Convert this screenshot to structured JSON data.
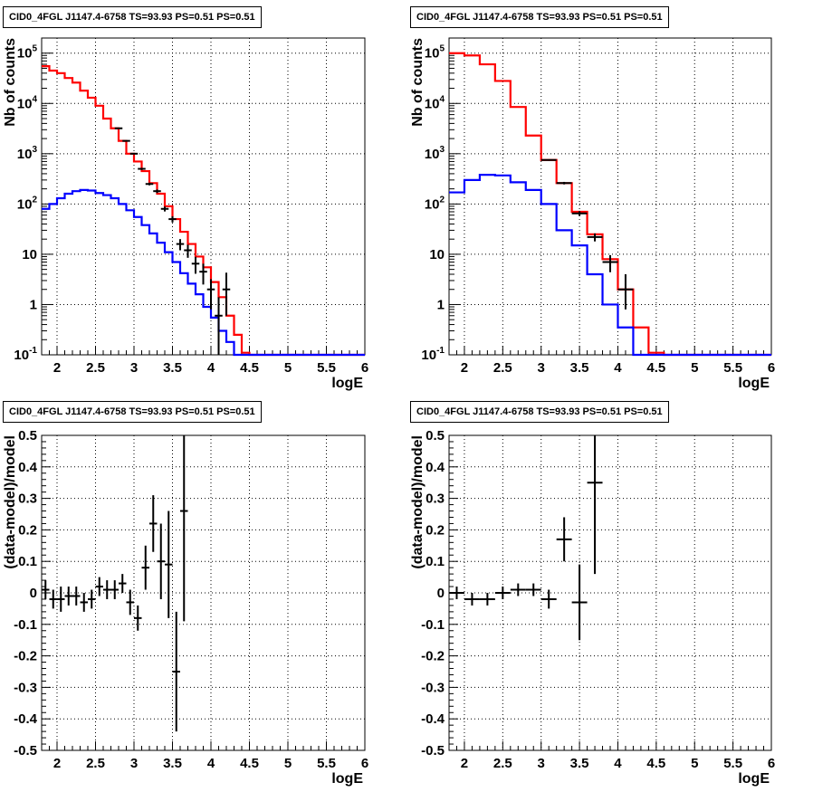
{
  "chart_data": [
    {
      "type": "line",
      "title": "CID0_4FGL J1147.4-6758 TS=93.93 PS=0.51 PS=0.51",
      "xlabel": "logE",
      "ylabel": "Nb of counts",
      "yscale": "log",
      "xlim": [
        1.8,
        6.0
      ],
      "ylim": [
        0.1,
        200000
      ],
      "grid": true,
      "x_ticks": [
        "2",
        "2.5",
        "3",
        "3.5",
        "4",
        "4.5",
        "5",
        "5.5",
        "6"
      ],
      "y_ticks": [
        "10^{-1}",
        "1",
        "10",
        "10^{2}",
        "10^{3}",
        "10^{4}",
        "10^{5}"
      ],
      "series": [
        {
          "color": "#ff0000",
          "style": "step",
          "bin_edges": [
            1.8,
            1.9,
            2.0,
            2.1,
            2.2,
            2.3,
            2.4,
            2.5,
            2.6,
            2.7,
            2.8,
            2.9,
            3.0,
            3.1,
            3.2,
            3.3,
            3.4,
            3.5,
            3.6,
            3.7,
            3.8,
            3.9,
            4.0,
            4.1,
            4.2,
            4.3,
            4.4,
            4.5,
            4.6,
            4.7,
            4.8,
            4.9,
            5.0,
            5.1,
            5.2,
            5.3,
            5.4,
            5.5,
            5.6,
            5.7,
            5.8,
            5.9,
            6.0
          ],
          "values": [
            55000,
            45000,
            40000,
            32000,
            26000,
            18000,
            13000,
            9000,
            5000,
            3200,
            1800,
            1000,
            700,
            450,
            260,
            160,
            90,
            50,
            28,
            16,
            9,
            5.5,
            2.8,
            1.4,
            0.6,
            0.25,
            0.11,
            0.1,
            0.1,
            0.1,
            0.1,
            0.1,
            0.1,
            0.1,
            0.1,
            0.1,
            0.1,
            0.1,
            0.1,
            0.1,
            0.1,
            0.1
          ]
        },
        {
          "color": "#0000ff",
          "style": "step",
          "bin_edges": [
            1.8,
            1.9,
            2.0,
            2.1,
            2.2,
            2.3,
            2.4,
            2.5,
            2.6,
            2.7,
            2.8,
            2.9,
            3.0,
            3.1,
            3.2,
            3.3,
            3.4,
            3.5,
            3.6,
            3.7,
            3.8,
            3.9,
            4.0,
            4.1,
            4.2,
            4.3,
            4.4,
            4.5,
            4.6,
            4.7,
            4.8,
            4.9,
            5.0,
            5.1,
            5.2,
            5.3,
            5.4,
            5.5,
            5.6,
            5.7,
            5.8,
            5.9,
            6.0
          ],
          "values": [
            80,
            100,
            130,
            160,
            180,
            190,
            185,
            165,
            150,
            130,
            100,
            75,
            55,
            38,
            26,
            17,
            11,
            7,
            4.2,
            2.6,
            1.6,
            0.9,
            0.55,
            0.3,
            0.18,
            0.1,
            0.1,
            0.1,
            0.1,
            0.1,
            0.1,
            0.1,
            0.1,
            0.1,
            0.1,
            0.1,
            0.1,
            0.1,
            0.1,
            0.1,
            0.1,
            0.1
          ]
        },
        {
          "color": "#000000",
          "style": "points",
          "x": [
            2.8,
            2.9,
            3.0,
            3.1,
            3.2,
            3.3,
            3.4,
            3.5,
            3.6,
            3.7,
            3.8,
            3.9,
            4.0,
            4.1,
            4.2
          ],
          "y": [
            3200,
            1800,
            1000,
            500,
            250,
            180,
            80,
            50,
            16,
            12,
            6.5,
            4.5,
            2,
            0.6,
            2
          ],
          "xerr": 0.05,
          "yerr_lo": [
            60,
            40,
            30,
            25,
            15,
            15,
            9,
            7,
            4,
            3.5,
            2.4,
            2,
            1.2,
            0.5,
            1.4
          ],
          "yerr_hi": [
            60,
            40,
            30,
            25,
            15,
            15,
            9,
            7,
            4,
            3.5,
            2.4,
            2,
            1.2,
            0.8,
            2.3
          ]
        }
      ]
    },
    {
      "type": "line",
      "title": "CID0_4FGL J1147.4-6758 TS=93.93 PS=0.51 PS=0.51",
      "xlabel": "logE",
      "ylabel": "Nb of counts",
      "yscale": "log",
      "xlim": [
        1.8,
        6.0
      ],
      "ylim": [
        0.1,
        200000
      ],
      "grid": true,
      "x_ticks": [
        "2",
        "2.5",
        "3",
        "3.5",
        "4",
        "4.5",
        "5",
        "5.5",
        "6"
      ],
      "y_ticks": [
        "10^{-1}",
        "1",
        "10",
        "10^{2}",
        "10^{3}",
        "10^{4}",
        "10^{5}"
      ],
      "series": [
        {
          "color": "#ff0000",
          "style": "step",
          "bin_edges": [
            1.8,
            2.0,
            2.2,
            2.4,
            2.6,
            2.8,
            3.0,
            3.2,
            3.4,
            3.6,
            3.8,
            4.0,
            4.2,
            4.4,
            4.6,
            4.8,
            5.0,
            5.2,
            5.4,
            5.6,
            5.8,
            6.0
          ],
          "values": [
            100000,
            90000,
            60000,
            28000,
            8500,
            2300,
            750,
            260,
            70,
            25,
            8,
            2,
            0.35,
            0.11,
            0.1,
            0.1,
            0.1,
            0.1,
            0.1,
            0.1,
            0.1
          ]
        },
        {
          "color": "#0000ff",
          "style": "step",
          "bin_edges": [
            1.8,
            2.0,
            2.2,
            2.4,
            2.6,
            2.8,
            3.0,
            3.2,
            3.4,
            3.6,
            3.8,
            4.0,
            4.2,
            4.4,
            4.6,
            4.8,
            5.0,
            5.2,
            5.4,
            5.6,
            5.8,
            6.0
          ],
          "values": [
            170,
            300,
            380,
            370,
            270,
            190,
            100,
            30,
            15,
            4,
            1,
            0.35,
            0.1,
            0.1,
            0.1,
            0.1,
            0.1,
            0.1,
            0.1,
            0.1,
            0.1
          ]
        },
        {
          "color": "#000000",
          "style": "points",
          "x": [
            3.1,
            3.3,
            3.5,
            3.7,
            3.9,
            4.1
          ],
          "y": [
            750,
            260,
            65,
            22,
            7,
            2
          ],
          "xerr": 0.1,
          "yerr_lo": [
            25,
            15,
            7,
            4,
            2.6,
            1.2
          ],
          "yerr_hi": [
            25,
            15,
            7,
            4,
            2.6,
            2
          ]
        }
      ]
    },
    {
      "type": "scatter",
      "title": "CID0_4FGL J1147.4-6758 TS=93.93 PS=0.51 PS=0.51",
      "xlabel": "logE",
      "ylabel": "(data-model)/model",
      "xlim": [
        1.8,
        6.0
      ],
      "ylim": [
        -0.5,
        0.5
      ],
      "grid": true,
      "x_ticks": [
        "2",
        "2.5",
        "3",
        "3.5",
        "4",
        "4.5",
        "5",
        "5.5",
        "6"
      ],
      "y_ticks": [
        "-0.5",
        "-0.4",
        "-0.3",
        "-0.2",
        "-0.1",
        "0",
        "0.1",
        "0.2",
        "0.3",
        "0.4",
        "0.5"
      ],
      "series": [
        {
          "color": "#000000",
          "x": [
            1.85,
            1.95,
            2.05,
            2.15,
            2.25,
            2.35,
            2.45,
            2.55,
            2.65,
            2.75,
            2.85,
            2.95,
            3.05,
            3.15,
            3.25,
            3.35,
            3.45,
            3.55,
            3.65
          ],
          "y": [
            0.01,
            -0.02,
            -0.02,
            -0.01,
            -0.01,
            -0.03,
            -0.02,
            0.02,
            0.01,
            0.01,
            0.03,
            -0.03,
            -0.08,
            0.08,
            0.22,
            0.1,
            0.09,
            -0.25,
            0.26
          ],
          "xerr": 0.05,
          "yerr": [
            0.03,
            0.03,
            0.04,
            0.03,
            0.03,
            0.03,
            0.03,
            0.03,
            0.03,
            0.03,
            0.03,
            0.04,
            0.04,
            0.07,
            0.09,
            0.12,
            0.17,
            0.19,
            0.35
          ]
        }
      ]
    },
    {
      "type": "scatter",
      "title": "CID0_4FGL J1147.4-6758 TS=93.93 PS=0.51 PS=0.51",
      "xlabel": "logE",
      "ylabel": "(data-model)/model",
      "xlim": [
        1.8,
        6.0
      ],
      "ylim": [
        -0.5,
        0.5
      ],
      "grid": true,
      "x_ticks": [
        "2",
        "2.5",
        "3",
        "3.5",
        "4",
        "4.5",
        "5",
        "5.5",
        "6"
      ],
      "y_ticks": [
        "-0.5",
        "-0.4",
        "-0.3",
        "-0.2",
        "-0.1",
        "0",
        "0.1",
        "0.2",
        "0.3",
        "0.4",
        "0.5"
      ],
      "series": [
        {
          "color": "#000000",
          "x": [
            1.9,
            2.1,
            2.3,
            2.5,
            2.7,
            2.9,
            3.1,
            3.3,
            3.5,
            3.7
          ],
          "y": [
            0.0,
            -0.02,
            -0.02,
            0.0,
            0.01,
            0.01,
            -0.02,
            0.17,
            -0.03,
            0.35
          ],
          "xerr": 0.1,
          "yerr": [
            0.02,
            0.02,
            0.02,
            0.02,
            0.02,
            0.02,
            0.03,
            0.07,
            0.12,
            0.29
          ]
        }
      ]
    }
  ]
}
